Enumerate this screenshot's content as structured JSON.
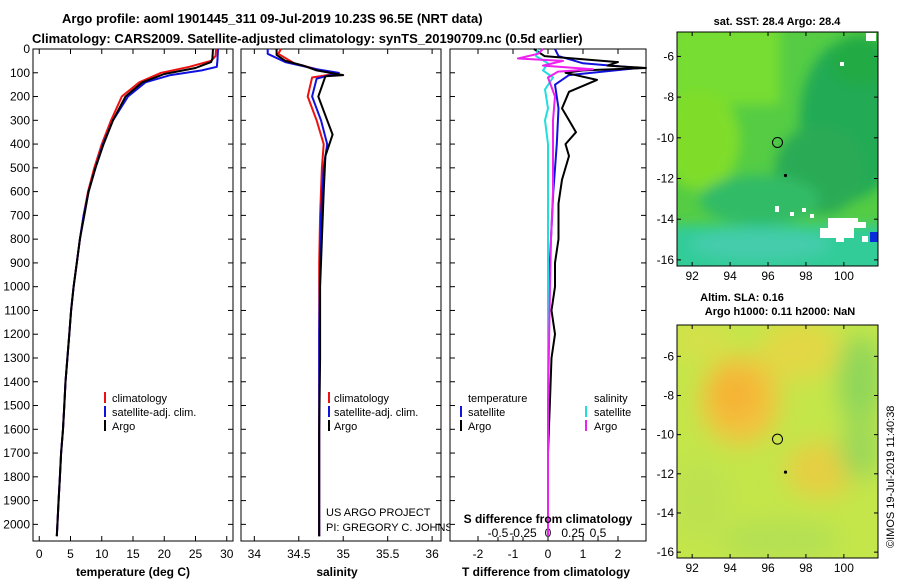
{
  "title": {
    "line1": "Argo profile: aoml 1901445_311 09-Jul-2019 10.23S 96.5E (NRT data)",
    "line2": "Climatology: CARS2009. Satellite-adjusted climatology: synTS_20190709.nc (0.5d earlier)"
  },
  "credits": {
    "project": "US ARGO PROJECT",
    "pi": "PI: GREGORY C. JOHNSON",
    "stamp": "©IMOS 19-Jul-2019 11:40:38"
  },
  "colors": {
    "climatology": "#ee1111",
    "satellite": "#1111dd",
    "argo": "#000000",
    "salinity_satellite": "#22dddd",
    "salinity_argo": "#ee22ee"
  },
  "chart_data": [
    {
      "id": "temperature",
      "type": "line",
      "xlabel": "temperature (deg C)",
      "ylabel": "",
      "xlim": [
        -1,
        31
      ],
      "ylim": [
        2070,
        0
      ],
      "xticks": [
        0,
        5,
        10,
        15,
        20,
        25,
        30
      ],
      "yticks": [
        0,
        100,
        200,
        300,
        400,
        500,
        600,
        700,
        800,
        900,
        1000,
        1100,
        1200,
        1300,
        1400,
        1500,
        1600,
        1700,
        1800,
        1900,
        2000
      ],
      "legend": [
        "climatology",
        "satellite-adj. clim.",
        "Argo"
      ],
      "series": [
        {
          "name": "climatology",
          "color": "#ee1111",
          "points": [
            [
              28.3,
              0
            ],
            [
              28.2,
              30
            ],
            [
              27.5,
              50
            ],
            [
              24,
              75
            ],
            [
              19.5,
              100
            ],
            [
              16,
              140
            ],
            [
              13.2,
              200
            ],
            [
              11.5,
              300
            ],
            [
              10,
              400
            ],
            [
              8.8,
              500
            ],
            [
              7.8,
              600
            ],
            [
              7.1,
              700
            ],
            [
              6.5,
              800
            ],
            [
              6.0,
              900
            ],
            [
              5.5,
              1000
            ],
            [
              5.1,
              1100
            ],
            [
              4.8,
              1200
            ],
            [
              4.5,
              1300
            ],
            [
              4.2,
              1400
            ],
            [
              4.0,
              1500
            ],
            [
              3.8,
              1600
            ],
            [
              3.5,
              1700
            ],
            [
              3.3,
              1800
            ],
            [
              3.1,
              1900
            ],
            [
              2.9,
              2000
            ],
            [
              2.8,
              2050
            ]
          ]
        },
        {
          "name": "satellite-adj. clim.",
          "color": "#1111dd",
          "points": [
            [
              28.6,
              0
            ],
            [
              28.5,
              50
            ],
            [
              28.4,
              75
            ],
            [
              26,
              90
            ],
            [
              21,
              110
            ],
            [
              17,
              140
            ],
            [
              14.2,
              200
            ],
            [
              11.8,
              300
            ],
            [
              10.2,
              400
            ],
            [
              9.0,
              500
            ],
            [
              7.9,
              600
            ],
            [
              7.1,
              700
            ],
            [
              6.5,
              800
            ],
            [
              6.0,
              900
            ],
            [
              5.5,
              1000
            ],
            [
              5.1,
              1100
            ],
            [
              4.8,
              1200
            ],
            [
              4.5,
              1300
            ],
            [
              4.2,
              1400
            ],
            [
              4.0,
              1500
            ],
            [
              3.8,
              1600
            ],
            [
              3.5,
              1700
            ],
            [
              3.3,
              1800
            ],
            [
              3.1,
              1900
            ],
            [
              2.9,
              2000
            ],
            [
              2.8,
              2050
            ]
          ]
        },
        {
          "name": "Argo",
          "color": "#000000",
          "points": [
            [
              27.8,
              0
            ],
            [
              27.7,
              40
            ],
            [
              27.5,
              55
            ],
            [
              25,
              80
            ],
            [
              20,
              105
            ],
            [
              16.5,
              140
            ],
            [
              13.8,
              200
            ],
            [
              11.8,
              300
            ],
            [
              10.3,
              400
            ],
            [
              9.0,
              500
            ],
            [
              7.9,
              600
            ],
            [
              7.2,
              700
            ],
            [
              6.5,
              800
            ],
            [
              6.0,
              900
            ],
            [
              5.5,
              1000
            ],
            [
              5.1,
              1100
            ],
            [
              4.8,
              1200
            ],
            [
              4.5,
              1300
            ],
            [
              4.2,
              1400
            ],
            [
              4.0,
              1500
            ],
            [
              3.8,
              1600
            ],
            [
              3.5,
              1700
            ],
            [
              3.3,
              1800
            ],
            [
              3.1,
              1900
            ],
            [
              2.9,
              2000
            ],
            [
              2.8,
              2050
            ]
          ]
        }
      ]
    },
    {
      "id": "salinity",
      "type": "line",
      "xlabel": "salinity",
      "xlim": [
        33.85,
        36.1
      ],
      "ylim": [
        2070,
        0
      ],
      "xticks": [
        34,
        34.5,
        35,
        35.5,
        36
      ],
      "legend": [
        "climatology",
        "satellite-adj. clim.",
        "Argo"
      ],
      "series": [
        {
          "name": "climatology",
          "color": "#ee1111",
          "points": [
            [
              34.3,
              0
            ],
            [
              34.27,
              20
            ],
            [
              34.45,
              60
            ],
            [
              34.75,
              90
            ],
            [
              34.9,
              105
            ],
            [
              34.65,
              120
            ],
            [
              34.6,
              200
            ],
            [
              34.7,
              300
            ],
            [
              34.78,
              400
            ],
            [
              34.76,
              500
            ],
            [
              34.74,
              700
            ],
            [
              34.73,
              900
            ],
            [
              34.73,
              1200
            ],
            [
              34.73,
              1500
            ],
            [
              34.73,
              2050
            ]
          ]
        },
        {
          "name": "satellite-adj. clim.",
          "color": "#1111dd",
          "points": [
            [
              34.15,
              0
            ],
            [
              34.15,
              20
            ],
            [
              34.35,
              55
            ],
            [
              34.7,
              85
            ],
            [
              34.95,
              100
            ],
            [
              34.7,
              125
            ],
            [
              34.65,
              200
            ],
            [
              34.75,
              300
            ],
            [
              34.82,
              400
            ],
            [
              34.78,
              500
            ],
            [
              34.75,
              700
            ],
            [
              34.74,
              900
            ],
            [
              34.73,
              1200
            ],
            [
              34.73,
              1500
            ],
            [
              34.73,
              2050
            ]
          ]
        },
        {
          "name": "Argo",
          "color": "#000000",
          "points": [
            [
              34.25,
              0
            ],
            [
              34.25,
              25
            ],
            [
              34.35,
              50
            ],
            [
              34.55,
              70
            ],
            [
              34.7,
              90
            ],
            [
              35.0,
              110
            ],
            [
              34.8,
              115
            ],
            [
              34.72,
              200
            ],
            [
              34.82,
              300
            ],
            [
              34.88,
              360
            ],
            [
              34.8,
              450
            ],
            [
              34.78,
              600
            ],
            [
              34.76,
              800
            ],
            [
              34.74,
              1000
            ],
            [
              34.74,
              1300
            ],
            [
              34.73,
              1600
            ],
            [
              34.73,
              2050
            ]
          ]
        }
      ]
    },
    {
      "id": "difference",
      "type": "line",
      "xlabel": "T difference from climatology",
      "top_label": "S difference from climatology",
      "xlim": [
        -2.8,
        2.8
      ],
      "ylim": [
        2070,
        0
      ],
      "xticks": [
        -2,
        -1,
        0,
        1,
        2
      ],
      "s_ticks": [
        -0.5,
        -0.25,
        0,
        0.25,
        0.5
      ],
      "legend_headers": [
        "temperature",
        "salinity"
      ],
      "legend_left": [
        "satellite",
        "Argo"
      ],
      "legend_right": [
        "satellite",
        "Argo"
      ],
      "series": [
        {
          "name": "T satellite",
          "color": "#1111dd",
          "points": [
            [
              0.2,
              0
            ],
            [
              0.3,
              30
            ],
            [
              1.0,
              60
            ],
            [
              2.6,
              80
            ],
            [
              0.6,
              110
            ],
            [
              0.2,
              150
            ],
            [
              0.3,
              250
            ],
            [
              0.25,
              400
            ],
            [
              0.15,
              600
            ],
            [
              0.05,
              900
            ],
            [
              0.0,
              1200
            ],
            [
              0.0,
              2050
            ]
          ]
        },
        {
          "name": "T Argo",
          "color": "#000000",
          "points": [
            [
              -0.4,
              0
            ],
            [
              -0.1,
              30
            ],
            [
              2.0,
              55
            ],
            [
              1.7,
              70
            ],
            [
              2.8,
              80
            ],
            [
              1.0,
              90
            ],
            [
              0.5,
              100
            ],
            [
              1.4,
              130
            ],
            [
              0.6,
              180
            ],
            [
              0.4,
              250
            ],
            [
              0.6,
              300
            ],
            [
              0.8,
              350
            ],
            [
              0.5,
              400
            ],
            [
              0.6,
              450
            ],
            [
              0.4,
              550
            ],
            [
              0.3,
              650
            ],
            [
              0.3,
              800
            ],
            [
              0.2,
              900
            ],
            [
              0.2,
              1000
            ],
            [
              0.1,
              1100
            ],
            [
              0.2,
              1200
            ],
            [
              0.1,
              1300
            ],
            [
              0.05,
              1500
            ],
            [
              0.0,
              1700
            ],
            [
              0.0,
              2050
            ]
          ]
        },
        {
          "name": "S satellite",
          "color": "#22dddd",
          "points": [
            [
              -0.1,
              0
            ],
            [
              -0.12,
              30
            ],
            [
              0.0,
              60
            ],
            [
              -0.05,
              90
            ],
            [
              0.05,
              120
            ],
            [
              -0.03,
              170
            ],
            [
              0.0,
              250
            ],
            [
              -0.03,
              300
            ],
            [
              0.0,
              400
            ],
            [
              0.0,
              600
            ],
            [
              0.0,
              1000
            ],
            [
              0.0,
              1500
            ],
            [
              0.0,
              2050
            ]
          ]
        },
        {
          "name": "S Argo",
          "color": "#ee22ee",
          "points": [
            [
              -0.05,
              0
            ],
            [
              -0.1,
              20
            ],
            [
              -0.3,
              40
            ],
            [
              0.15,
              50
            ],
            [
              -0.05,
              70
            ],
            [
              0.45,
              85
            ],
            [
              0.1,
              95
            ],
            [
              0.0,
              120
            ],
            [
              0.07,
              200
            ],
            [
              0.05,
              300
            ],
            [
              0.05,
              400
            ],
            [
              0.05,
              600
            ],
            [
              0.03,
              800
            ],
            [
              0.02,
              1000
            ],
            [
              0.0,
              1500
            ],
            [
              0.0,
              2050
            ]
          ]
        }
      ]
    },
    {
      "id": "sst_map",
      "type": "heatmap",
      "title": "sat. SST: 28.4 Argo: 28.4",
      "xlim": [
        91.2,
        101.8
      ],
      "ylim": [
        -16.3,
        -4.8
      ],
      "xticks": [
        92,
        94,
        96,
        98,
        100
      ],
      "yticks": [
        -6,
        -8,
        -10,
        -12,
        -14,
        -16
      ],
      "marker": {
        "lon": 96.5,
        "lat": -10.23
      }
    },
    {
      "id": "sla_map",
      "type": "heatmap",
      "title": "Altim. SLA: 0.16",
      "subtitle": "Argo h1000: 0.11 h2000: NaN",
      "xlim": [
        91.2,
        101.8
      ],
      "ylim": [
        -16.3,
        -4.4
      ],
      "xticks": [
        92,
        94,
        96,
        98,
        100
      ],
      "yticks": [
        -6,
        -8,
        -10,
        -12,
        -14,
        -16
      ],
      "marker": {
        "lon": 96.5,
        "lat": -10.23
      }
    }
  ]
}
